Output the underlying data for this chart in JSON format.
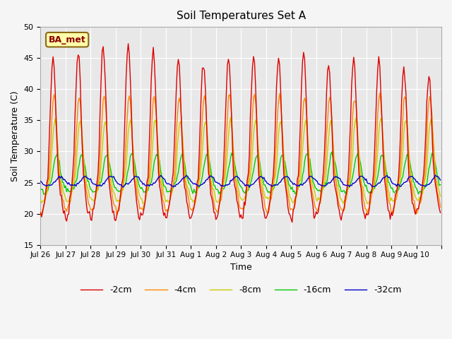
{
  "title": "Soil Temperatures Set A",
  "xlabel": "Time",
  "ylabel": "Soil Temperature (C)",
  "ylim": [
    15,
    50
  ],
  "annotation": "BA_met",
  "legend_labels": [
    "-2cm",
    "-4cm",
    "-8cm",
    "-16cm",
    "-32cm"
  ],
  "legend_colors": [
    "#dd0000",
    "#ff8800",
    "#cccc00",
    "#00cc00",
    "#0000cc"
  ],
  "background_color": "#e8e8e8",
  "grid_color": "#ffffff",
  "tick_dates": [
    "Jul 26",
    "Jul 27",
    "Jul 28",
    "Jul 29",
    "Jul 30",
    "Jul 31",
    "Aug 1",
    "Aug 2",
    "Aug 3",
    "Aug 4",
    "Aug 5",
    "Aug 6",
    "Aug 7",
    "Aug 8",
    "Aug 9",
    "Aug 10"
  ],
  "n_points_per_day": 24,
  "n_days": 16,
  "figsize": [
    6.4,
    4.8
  ],
  "dpi": 100
}
